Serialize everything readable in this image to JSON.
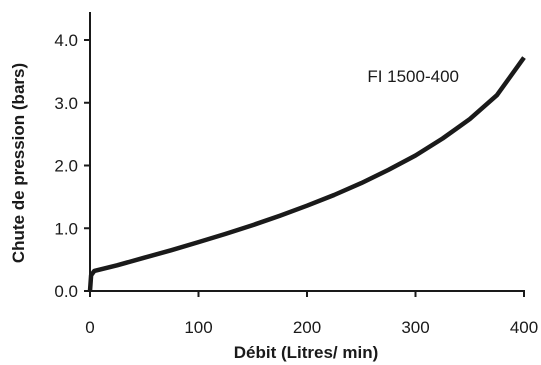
{
  "chart_data": {
    "type": "line",
    "title": "",
    "xlabel": "Débit (Litres/ min)",
    "ylabel": "Chute de pression (bars)",
    "xlim": [
      0,
      400
    ],
    "ylim": [
      0,
      4.0
    ],
    "x_ticks": [
      0,
      100,
      200,
      300,
      400
    ],
    "x_tick_labels": [
      "0",
      "100",
      "200",
      "300",
      "400"
    ],
    "y_ticks": [
      0,
      1.0,
      2.0,
      3.0,
      4.0
    ],
    "y_tick_labels": [
      "0.0",
      "1.0",
      "2.0",
      "3.0",
      "4.0"
    ],
    "grid": false,
    "series": [
      {
        "name": "FI 1500-400",
        "color": "#1a1a1a",
        "x": [
          0,
          1,
          4,
          25,
          50,
          75,
          100,
          125,
          150,
          175,
          200,
          225,
          250,
          275,
          300,
          325,
          350,
          375,
          400
        ],
        "y": [
          0.0,
          0.25,
          0.32,
          0.41,
          0.53,
          0.65,
          0.78,
          0.91,
          1.05,
          1.2,
          1.36,
          1.53,
          1.72,
          1.93,
          2.16,
          2.43,
          2.74,
          3.12,
          3.72
        ]
      }
    ]
  }
}
